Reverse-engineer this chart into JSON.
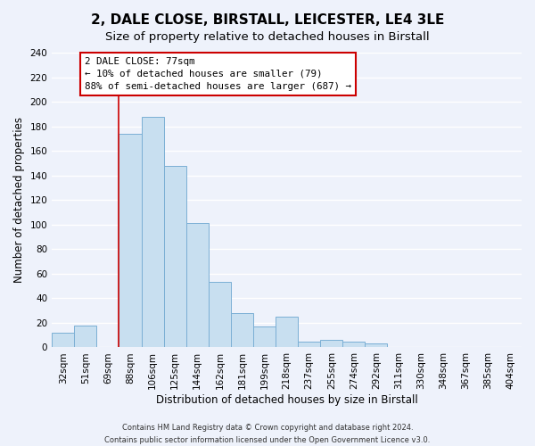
{
  "title": "2, DALE CLOSE, BIRSTALL, LEICESTER, LE4 3LE",
  "subtitle": "Size of property relative to detached houses in Birstall",
  "xlabel": "Distribution of detached houses by size in Birstall",
  "ylabel": "Number of detached properties",
  "bar_labels": [
    "32sqm",
    "51sqm",
    "69sqm",
    "88sqm",
    "106sqm",
    "125sqm",
    "144sqm",
    "162sqm",
    "181sqm",
    "199sqm",
    "218sqm",
    "237sqm",
    "255sqm",
    "274sqm",
    "292sqm",
    "311sqm",
    "330sqm",
    "348sqm",
    "367sqm",
    "385sqm",
    "404sqm"
  ],
  "bar_values": [
    12,
    18,
    0,
    174,
    188,
    148,
    101,
    53,
    28,
    17,
    25,
    5,
    6,
    5,
    3,
    0,
    0,
    0,
    0,
    0,
    0
  ],
  "bar_color": "#c8dff0",
  "bar_edge_color": "#7bafd4",
  "ylim": [
    0,
    240
  ],
  "yticks": [
    0,
    20,
    40,
    60,
    80,
    100,
    120,
    140,
    160,
    180,
    200,
    220,
    240
  ],
  "annotation_title": "2 DALE CLOSE: 77sqm",
  "annotation_line1": "← 10% of detached houses are smaller (79)",
  "annotation_line2": "88% of semi-detached houses are larger (687) →",
  "vline_index": 3,
  "footer_line1": "Contains HM Land Registry data © Crown copyright and database right 2024.",
  "footer_line2": "Contains public sector information licensed under the Open Government Licence v3.0.",
  "background_color": "#eef2fb",
  "grid_color": "#ffffff",
  "vline_color": "#cc0000",
  "title_fontsize": 11,
  "subtitle_fontsize": 9.5,
  "xlabel_fontsize": 8.5,
  "ylabel_fontsize": 8.5,
  "tick_fontsize": 7.5,
  "footer_fontsize": 6
}
